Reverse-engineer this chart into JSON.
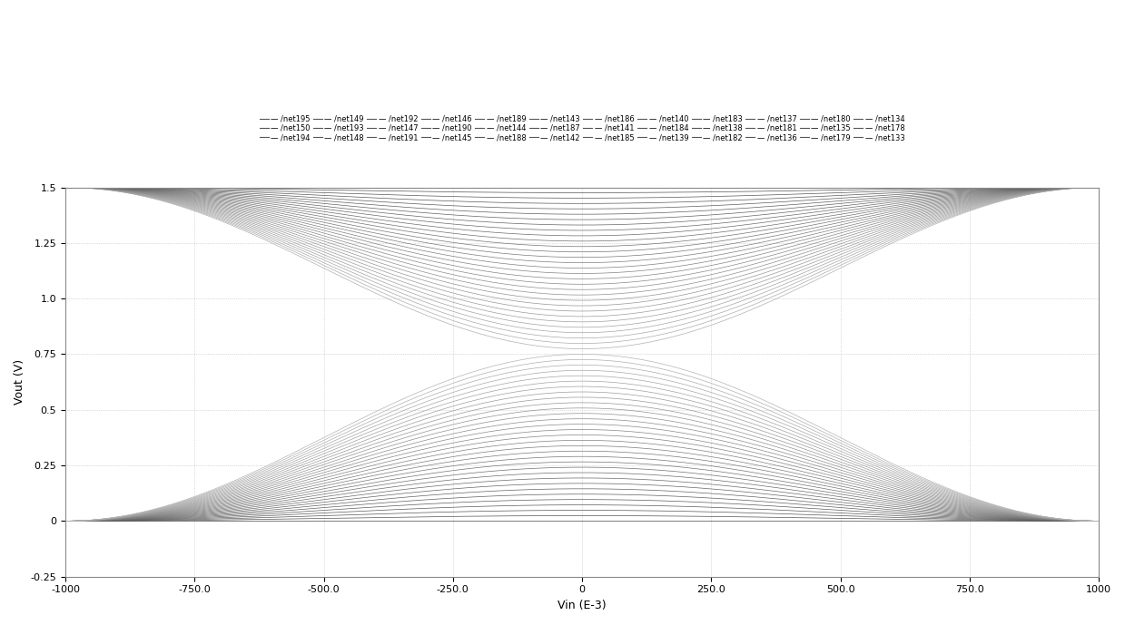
{
  "title": "",
  "xlabel": "Vin (E-3)",
  "ylabel": "Vout (V)",
  "xlim": [
    -1000,
    1000
  ],
  "ylim": [
    -0.25,
    1.5
  ],
  "xticks": [
    -1000,
    -750.0,
    -500.0,
    -250.0,
    0,
    250.0,
    500.0,
    750.0,
    1000
  ],
  "yticks": [
    -0.25,
    0,
    0.25,
    0.5,
    0.75,
    1.0,
    1.25,
    1.5
  ],
  "background_color": "#ffffff",
  "grid_color": "#bbbbbb",
  "n_curves": 63,
  "vdd": 1.5,
  "legend_rows": [
    [
      "— /net195",
      "— /net150",
      "— /net194",
      "— /net149",
      "— /net193",
      "— /net148",
      "— /net192",
      "— /net147",
      "— /net191",
      "— /net146",
      "— /net190",
      "— /net145"
    ],
    [
      "— /net189",
      "— /net144",
      "— /net188",
      "— /net143",
      "— /net187",
      "— /net142",
      "— /net186",
      "— /net141",
      "— /net185",
      "— /net140",
      "— /net184",
      "— /net139"
    ],
    [
      "— /net183",
      "— /net138",
      "— /net182",
      "— /net137",
      "— /net181",
      "— /net136",
      "— /net180",
      "— /net135",
      "— /net179",
      "— /net134",
      "— /net178",
      "— /net133"
    ]
  ]
}
